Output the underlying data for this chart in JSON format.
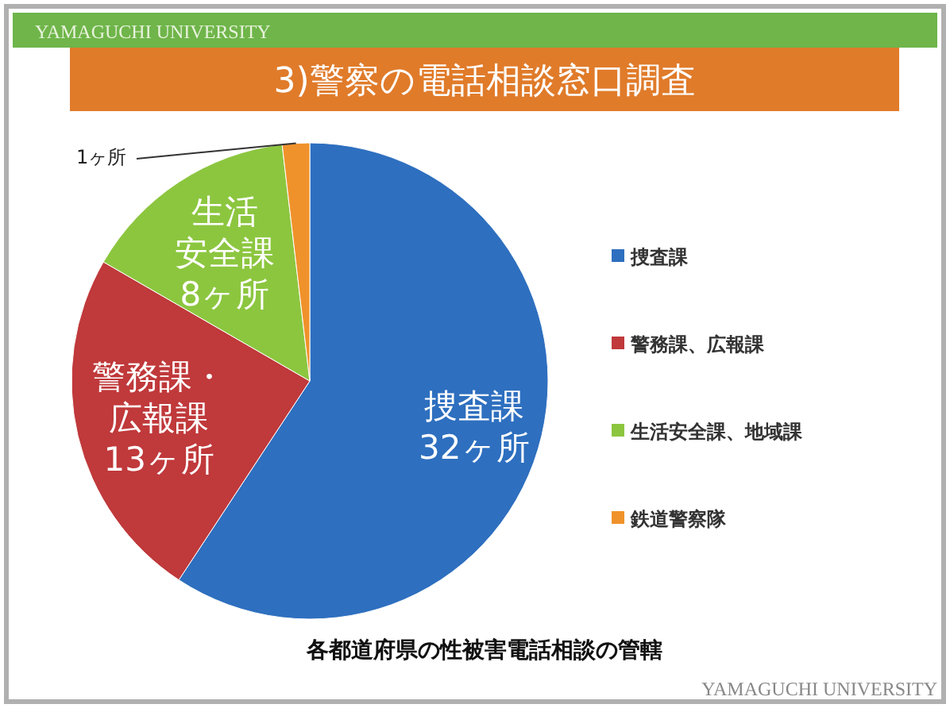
{
  "chart_data": {
    "type": "pie",
    "title": "3)警察の電話相談窓口調査",
    "categories": [
      "捜査課",
      "警務課、広報課",
      "生活安全課、地域課",
      "鉄道警察隊"
    ],
    "values": [
      32,
      13,
      8,
      1
    ],
    "colors": [
      "#2e6fbf",
      "#c0393b",
      "#8cc63f",
      "#f0922b"
    ],
    "value_labels": [
      "捜査課32ヶ所",
      "警務課・広報課13ヶ所",
      "生活安全課8ヶ所",
      "1ヶ所"
    ],
    "legend": "right",
    "annotations": [
      "各都道府県の性被害電話相談の管轄",
      "YAMAGUCHI UNIVERSITY",
      "YAMAGUCHI UNIVERSITY"
    ]
  }
}
